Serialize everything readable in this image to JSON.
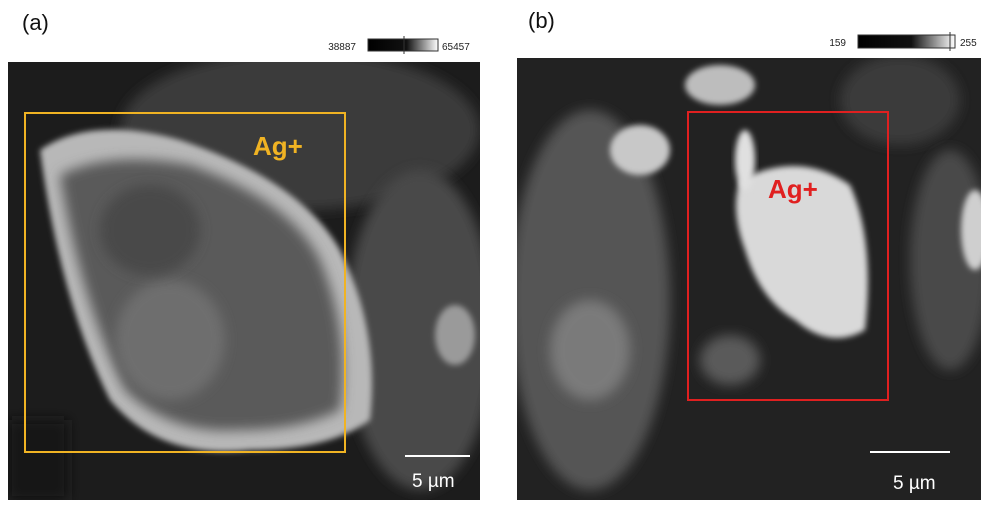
{
  "panels": [
    {
      "label": "(a)",
      "colorbar_min": "38887",
      "colorbar_max": "65457",
      "annotation": "Ag+",
      "scale_bar": "5 µm"
    },
    {
      "label": "(b)",
      "colorbar_min": "159",
      "colorbar_max": "255",
      "annotation": "Ag+",
      "scale_bar": "5 µm"
    }
  ]
}
